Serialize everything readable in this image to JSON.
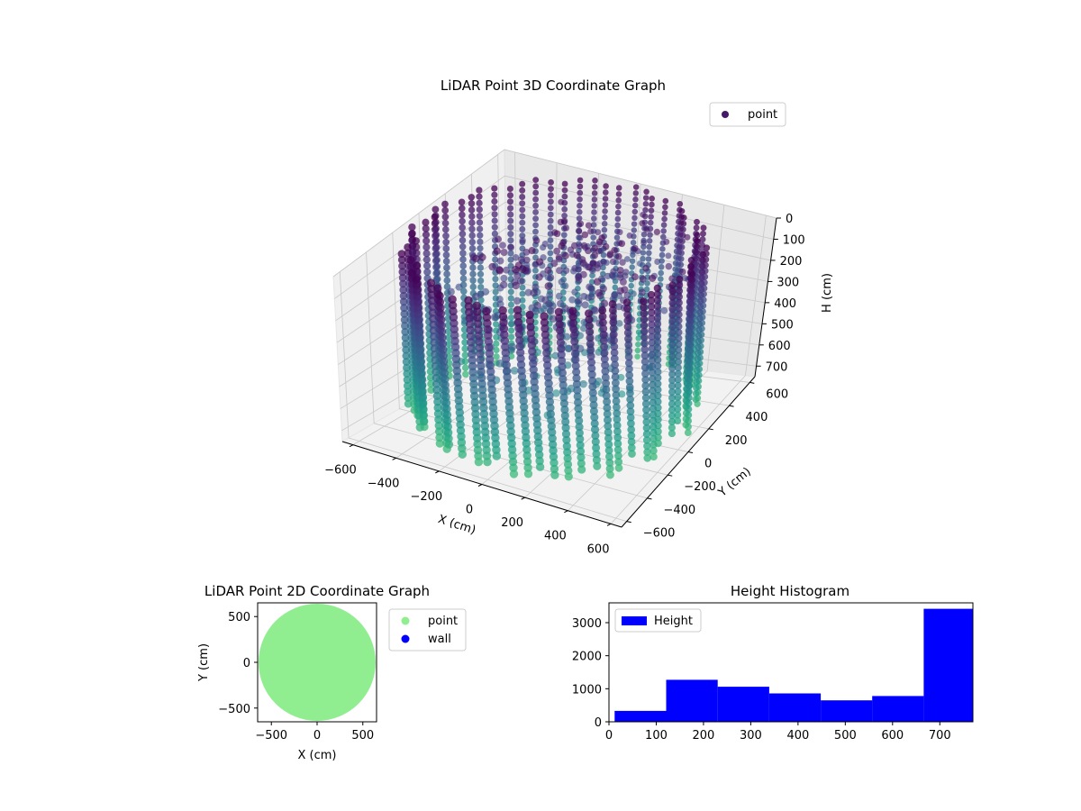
{
  "chart_data": [
    {
      "type": "scatter",
      "projection": "3d",
      "title": "LiDAR Point 3D Coordinate Graph",
      "xlabel": "X (cm)",
      "ylabel": "Y (cm)",
      "zlabel": "H (cm)",
      "xlim": [
        -650,
        650
      ],
      "ylim": [
        -650,
        650
      ],
      "zlim": [
        0,
        750
      ],
      "z_inverted": true,
      "x_ticks": [
        -600,
        -400,
        -200,
        0,
        200,
        400,
        600
      ],
      "y_ticks": [
        -600,
        -400,
        -200,
        0,
        200,
        400,
        600
      ],
      "z_ticks": [
        0,
        100,
        200,
        300,
        400,
        500,
        600,
        700
      ],
      "colormap": "viridis",
      "legend": {
        "position": "top-right",
        "entries": [
          {
            "label": "point",
            "color": "#46176b"
          }
        ]
      },
      "series": [
        {
          "name": "point",
          "shape": "cylindrical-wall",
          "radius_cm": 620,
          "height_range_cm": [
            0,
            750
          ]
        }
      ],
      "grid": true
    },
    {
      "type": "scatter",
      "title": "LiDAR Point 2D Coordinate Graph",
      "xlabel": "X (cm)",
      "ylabel": "Y (cm)",
      "xlim": [
        -650,
        650
      ],
      "ylim": [
        -650,
        650
      ],
      "x_ticks": [
        -500,
        0,
        500
      ],
      "y_ticks": [
        -500,
        0,
        500
      ],
      "legend": {
        "position": "outside-right",
        "entries": [
          {
            "label": "point",
            "color": "#90ee90"
          },
          {
            "label": "wall",
            "color": "#0000ff"
          }
        ]
      },
      "series": [
        {
          "name": "point",
          "color": "#90ee90",
          "shape": "disc",
          "radius_cm": 640
        },
        {
          "name": "wall",
          "color": "#0000ff"
        }
      ]
    },
    {
      "type": "bar",
      "title": "Height Histogram",
      "xlim": [
        0,
        770
      ],
      "ylim": [
        0,
        3600
      ],
      "x_ticks": [
        0,
        100,
        200,
        300,
        400,
        500,
        600,
        700
      ],
      "y_ticks": [
        0,
        1000,
        2000,
        3000
      ],
      "legend": {
        "position": "top-left",
        "entries": [
          {
            "label": "Height",
            "color": "#0000ff"
          }
        ]
      },
      "bins": [
        {
          "from": 12,
          "to": 121,
          "count": 330
        },
        {
          "from": 121,
          "to": 230,
          "count": 1270
        },
        {
          "from": 230,
          "to": 339,
          "count": 1060
        },
        {
          "from": 339,
          "to": 448,
          "count": 860
        },
        {
          "from": 448,
          "to": 557,
          "count": 650
        },
        {
          "from": 557,
          "to": 666,
          "count": 780
        },
        {
          "from": 666,
          "to": 775,
          "count": 3420
        }
      ],
      "series": [
        {
          "name": "Height",
          "color": "#0000ff"
        }
      ]
    }
  ]
}
